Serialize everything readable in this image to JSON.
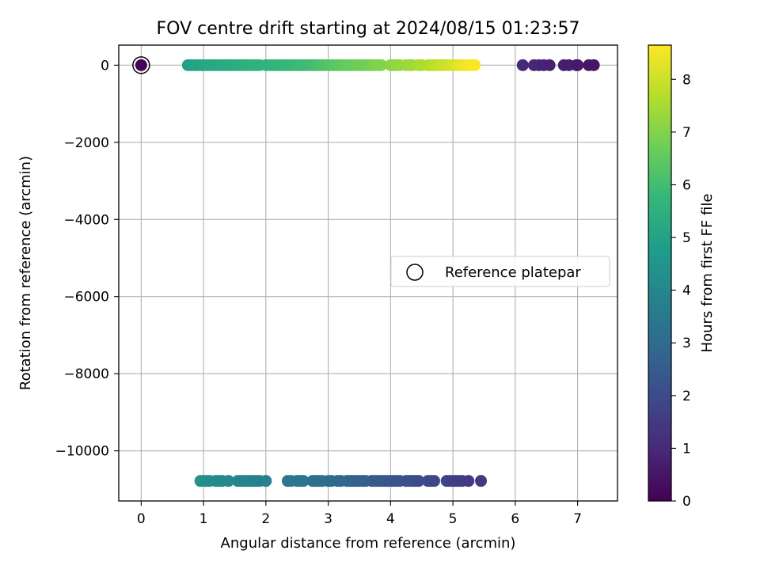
{
  "chart_data": {
    "type": "scatter",
    "title": "FOV centre drift starting at 2024/08/15 01:23:57",
    "xlabel": "Angular distance from reference (arcmin)",
    "ylabel": "Rotation from reference (arcmin)",
    "xlim": [
      -0.36,
      7.64
    ],
    "ylim": [
      -11300,
      520
    ],
    "xticks": [
      0,
      1,
      2,
      3,
      4,
      5,
      6,
      7
    ],
    "yticks": [
      0,
      -2000,
      -4000,
      -6000,
      -8000,
      -10000
    ],
    "xtick_labels": [
      "0",
      "1",
      "2",
      "3",
      "4",
      "5",
      "6",
      "7"
    ],
    "ytick_labels": [
      "0",
      "−2000",
      "−4000",
      "−6000",
      "−8000",
      "−10000"
    ],
    "grid": true,
    "legend": {
      "placement": "center-right",
      "entries": [
        "Reference platepar"
      ]
    },
    "colormap": "viridis",
    "colorbar": {
      "label": "Hours from first FF file",
      "range": [
        0,
        8.65
      ],
      "ticks": [
        0,
        1,
        2,
        3,
        4,
        5,
        6,
        7,
        8
      ],
      "tick_labels": [
        "0",
        "1",
        "2",
        "3",
        "4",
        "5",
        "6",
        "7",
        "8"
      ]
    },
    "reference_point": {
      "x": 0,
      "y": 0,
      "hours": 0.05
    },
    "series": [
      {
        "points_xyh": [
          [
            0.75,
            0,
            4.9
          ],
          [
            0.8,
            0,
            4.95
          ],
          [
            0.85,
            0,
            5.0
          ],
          [
            0.9,
            0,
            5.02
          ],
          [
            0.95,
            0,
            5.05
          ],
          [
            1.0,
            0,
            5.1
          ],
          [
            1.05,
            0,
            5.12
          ],
          [
            1.1,
            0,
            5.15
          ],
          [
            1.15,
            0,
            5.18
          ],
          [
            1.2,
            0,
            5.2
          ],
          [
            1.25,
            0,
            5.22
          ],
          [
            1.3,
            0,
            5.25
          ],
          [
            1.35,
            0,
            5.28
          ],
          [
            1.4,
            0,
            5.3
          ],
          [
            1.45,
            0,
            5.32
          ],
          [
            1.5,
            0,
            5.35
          ],
          [
            1.55,
            0,
            5.38
          ],
          [
            1.6,
            0,
            5.4
          ],
          [
            1.65,
            0,
            5.42
          ],
          [
            1.7,
            0,
            5.45
          ],
          [
            1.75,
            0,
            5.48
          ],
          [
            1.8,
            0,
            5.5
          ],
          [
            1.85,
            0,
            5.52
          ],
          [
            1.9,
            0,
            5.55
          ],
          [
            2.0,
            0,
            5.6
          ],
          [
            2.05,
            0,
            5.62
          ],
          [
            2.1,
            0,
            5.65
          ],
          [
            2.15,
            0,
            5.68
          ],
          [
            2.2,
            0,
            5.7
          ],
          [
            2.25,
            0,
            5.72
          ],
          [
            2.3,
            0,
            5.75
          ],
          [
            2.35,
            0,
            5.78
          ],
          [
            2.4,
            0,
            5.8
          ],
          [
            2.45,
            0,
            5.82
          ],
          [
            2.5,
            0,
            5.85
          ],
          [
            2.55,
            0,
            5.88
          ],
          [
            2.6,
            0,
            5.9
          ],
          [
            2.65,
            0,
            5.92
          ],
          [
            2.7,
            0,
            5.95
          ],
          [
            2.75,
            0,
            5.98
          ],
          [
            2.8,
            0,
            6.05
          ],
          [
            2.85,
            0,
            6.1
          ],
          [
            2.9,
            0,
            6.15
          ],
          [
            2.95,
            0,
            6.2
          ],
          [
            3.0,
            0,
            6.25
          ],
          [
            3.05,
            0,
            6.3
          ],
          [
            3.1,
            0,
            6.35
          ],
          [
            3.15,
            0,
            6.4
          ],
          [
            3.2,
            0,
            6.45
          ],
          [
            3.25,
            0,
            6.5
          ],
          [
            3.3,
            0,
            6.55
          ],
          [
            3.35,
            0,
            6.6
          ],
          [
            3.4,
            0,
            6.62
          ],
          [
            3.45,
            0,
            6.65
          ],
          [
            3.5,
            0,
            6.68
          ],
          [
            3.55,
            0,
            6.7
          ],
          [
            3.6,
            0,
            6.75
          ],
          [
            3.65,
            0,
            6.8
          ],
          [
            3.7,
            0,
            6.85
          ],
          [
            3.75,
            0,
            6.9
          ],
          [
            3.8,
            0,
            6.95
          ],
          [
            3.85,
            0,
            7.0
          ],
          [
            4.0,
            0,
            7.1
          ],
          [
            4.05,
            0,
            7.15
          ],
          [
            4.1,
            0,
            7.2
          ],
          [
            4.15,
            0,
            7.25
          ],
          [
            4.25,
            0,
            7.3
          ],
          [
            4.3,
            0,
            7.35
          ],
          [
            4.35,
            0,
            7.4
          ],
          [
            4.45,
            0,
            7.5
          ],
          [
            4.5,
            0,
            7.55
          ],
          [
            4.6,
            0,
            7.65
          ],
          [
            4.65,
            0,
            7.7
          ],
          [
            4.7,
            0,
            7.75
          ],
          [
            4.75,
            0,
            7.8
          ],
          [
            4.8,
            0,
            7.9
          ],
          [
            4.85,
            0,
            7.95
          ],
          [
            4.9,
            0,
            8.0
          ],
          [
            4.95,
            0,
            8.05
          ],
          [
            5.0,
            0,
            8.1
          ],
          [
            5.05,
            0,
            8.2
          ],
          [
            5.1,
            0,
            8.3
          ],
          [
            5.15,
            0,
            8.4
          ],
          [
            5.2,
            0,
            8.45
          ],
          [
            5.25,
            0,
            8.5
          ],
          [
            5.3,
            0,
            8.55
          ],
          [
            5.35,
            0,
            8.6
          ],
          [
            6.12,
            0,
            1.0
          ],
          [
            6.3,
            0,
            0.95
          ],
          [
            6.38,
            0,
            0.9
          ],
          [
            6.46,
            0,
            0.85
          ],
          [
            6.55,
            0,
            0.8
          ],
          [
            6.78,
            0,
            0.75
          ],
          [
            6.86,
            0,
            0.7
          ],
          [
            6.98,
            0,
            0.65
          ],
          [
            7.0,
            0,
            0.6
          ],
          [
            7.18,
            0,
            0.55
          ],
          [
            7.26,
            0,
            0.5
          ],
          [
            0.95,
            -10780,
            4.4
          ],
          [
            1.0,
            -10780,
            4.35
          ],
          [
            1.05,
            -10780,
            4.3
          ],
          [
            1.1,
            -10780,
            4.25
          ],
          [
            1.2,
            -10780,
            4.2
          ],
          [
            1.25,
            -10780,
            4.15
          ],
          [
            1.3,
            -10780,
            4.1
          ],
          [
            1.4,
            -10780,
            4.05
          ],
          [
            1.55,
            -10780,
            4.0
          ],
          [
            1.6,
            -10780,
            3.98
          ],
          [
            1.65,
            -10780,
            3.95
          ],
          [
            1.7,
            -10780,
            3.92
          ],
          [
            1.75,
            -10780,
            3.9
          ],
          [
            1.8,
            -10780,
            3.88
          ],
          [
            1.85,
            -10780,
            3.85
          ],
          [
            1.9,
            -10780,
            3.82
          ],
          [
            2.0,
            -10780,
            3.8
          ],
          [
            2.35,
            -10780,
            3.5
          ],
          [
            2.4,
            -10780,
            3.45
          ],
          [
            2.5,
            -10780,
            3.4
          ],
          [
            2.55,
            -10780,
            3.38
          ],
          [
            2.6,
            -10780,
            3.35
          ],
          [
            2.75,
            -10780,
            3.25
          ],
          [
            2.8,
            -10780,
            3.2
          ],
          [
            2.85,
            -10780,
            3.15
          ],
          [
            2.9,
            -10780,
            3.1
          ],
          [
            3.0,
            -10780,
            3.05
          ],
          [
            3.05,
            -10780,
            3.0
          ],
          [
            3.15,
            -10780,
            2.95
          ],
          [
            3.2,
            -10780,
            2.9
          ],
          [
            3.3,
            -10780,
            2.85
          ],
          [
            3.35,
            -10780,
            2.82
          ],
          [
            3.4,
            -10780,
            2.8
          ],
          [
            3.45,
            -10780,
            2.75
          ],
          [
            3.5,
            -10780,
            2.7
          ],
          [
            3.55,
            -10780,
            2.65
          ],
          [
            3.6,
            -10780,
            2.6
          ],
          [
            3.7,
            -10780,
            2.55
          ],
          [
            3.75,
            -10780,
            2.5
          ],
          [
            3.8,
            -10780,
            2.48
          ],
          [
            3.85,
            -10780,
            2.45
          ],
          [
            3.9,
            -10780,
            2.42
          ],
          [
            3.95,
            -10780,
            2.4
          ],
          [
            4.0,
            -10780,
            2.38
          ],
          [
            4.05,
            -10780,
            2.35
          ],
          [
            4.1,
            -10780,
            2.3
          ],
          [
            4.15,
            -10780,
            2.25
          ],
          [
            4.25,
            -10780,
            2.2
          ],
          [
            4.3,
            -10780,
            2.15
          ],
          [
            4.35,
            -10780,
            2.1
          ],
          [
            4.4,
            -10780,
            2.05
          ],
          [
            4.45,
            -10780,
            2.0
          ],
          [
            4.6,
            -10780,
            1.95
          ],
          [
            4.65,
            -10780,
            1.9
          ],
          [
            4.7,
            -10780,
            1.85
          ],
          [
            4.9,
            -10780,
            1.8
          ],
          [
            4.95,
            -10780,
            1.75
          ],
          [
            5.0,
            -10780,
            1.7
          ],
          [
            5.05,
            -10780,
            1.65
          ],
          [
            5.1,
            -10780,
            1.6
          ],
          [
            5.15,
            -10780,
            1.55
          ],
          [
            5.25,
            -10780,
            1.5
          ],
          [
            5.45,
            -10780,
            1.45
          ]
        ]
      }
    ]
  }
}
